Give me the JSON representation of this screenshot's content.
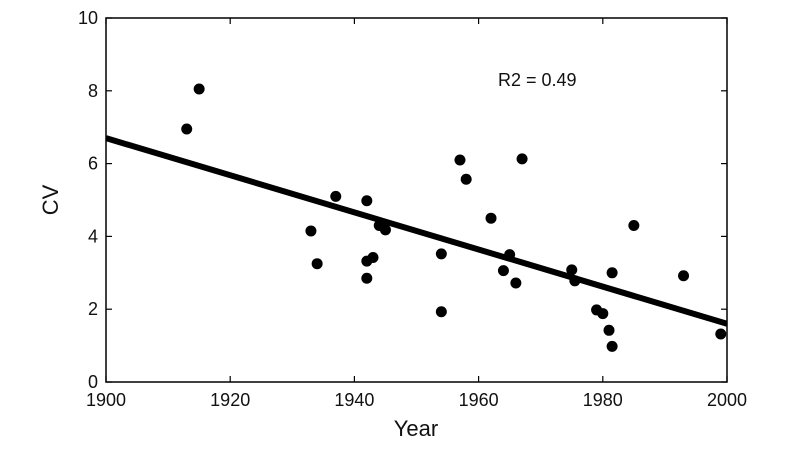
{
  "chart_data": {
    "type": "scatter",
    "xlabel": "Year",
    "ylabel": "CV",
    "xlim": [
      1900,
      2000
    ],
    "ylim": [
      0,
      10
    ],
    "xticks": [
      "1900",
      "1920",
      "1940",
      "1960",
      "1980",
      "2000"
    ],
    "yticks": [
      "0",
      "2",
      "4",
      "6",
      "8",
      "10"
    ],
    "annotation": "R2 = 0.49",
    "grid": false,
    "legend": "none",
    "colors": {
      "points": "#000000",
      "fit_line": "#000000",
      "axes": "#000000"
    },
    "fit_line": {
      "x": [
        1900,
        2000
      ],
      "y": [
        6.7,
        1.6
      ]
    },
    "points": [
      {
        "x": 1913,
        "y": 6.95
      },
      {
        "x": 1915,
        "y": 8.05
      },
      {
        "x": 1933,
        "y": 4.15
      },
      {
        "x": 1934,
        "y": 3.25
      },
      {
        "x": 1937,
        "y": 5.1
      },
      {
        "x": 1942,
        "y": 4.98
      },
      {
        "x": 1942,
        "y": 3.32
      },
      {
        "x": 1942,
        "y": 2.85
      },
      {
        "x": 1943,
        "y": 3.42
      },
      {
        "x": 1944,
        "y": 4.3
      },
      {
        "x": 1945,
        "y": 4.18
      },
      {
        "x": 1954,
        "y": 3.52
      },
      {
        "x": 1954,
        "y": 1.93
      },
      {
        "x": 1957,
        "y": 6.1
      },
      {
        "x": 1958,
        "y": 5.57
      },
      {
        "x": 1962,
        "y": 4.5
      },
      {
        "x": 1964,
        "y": 3.06
      },
      {
        "x": 1965,
        "y": 3.5
      },
      {
        "x": 1966,
        "y": 2.72
      },
      {
        "x": 1967,
        "y": 6.13
      },
      {
        "x": 1975,
        "y": 3.08
      },
      {
        "x": 1975.5,
        "y": 2.78
      },
      {
        "x": 1979,
        "y": 1.98
      },
      {
        "x": 1980,
        "y": 1.88
      },
      {
        "x": 1981,
        "y": 1.42
      },
      {
        "x": 1981.5,
        "y": 0.98
      },
      {
        "x": 1981.5,
        "y": 3.0
      },
      {
        "x": 1985,
        "y": 4.3
      },
      {
        "x": 1993,
        "y": 2.92
      },
      {
        "x": 1999,
        "y": 1.32
      }
    ]
  }
}
